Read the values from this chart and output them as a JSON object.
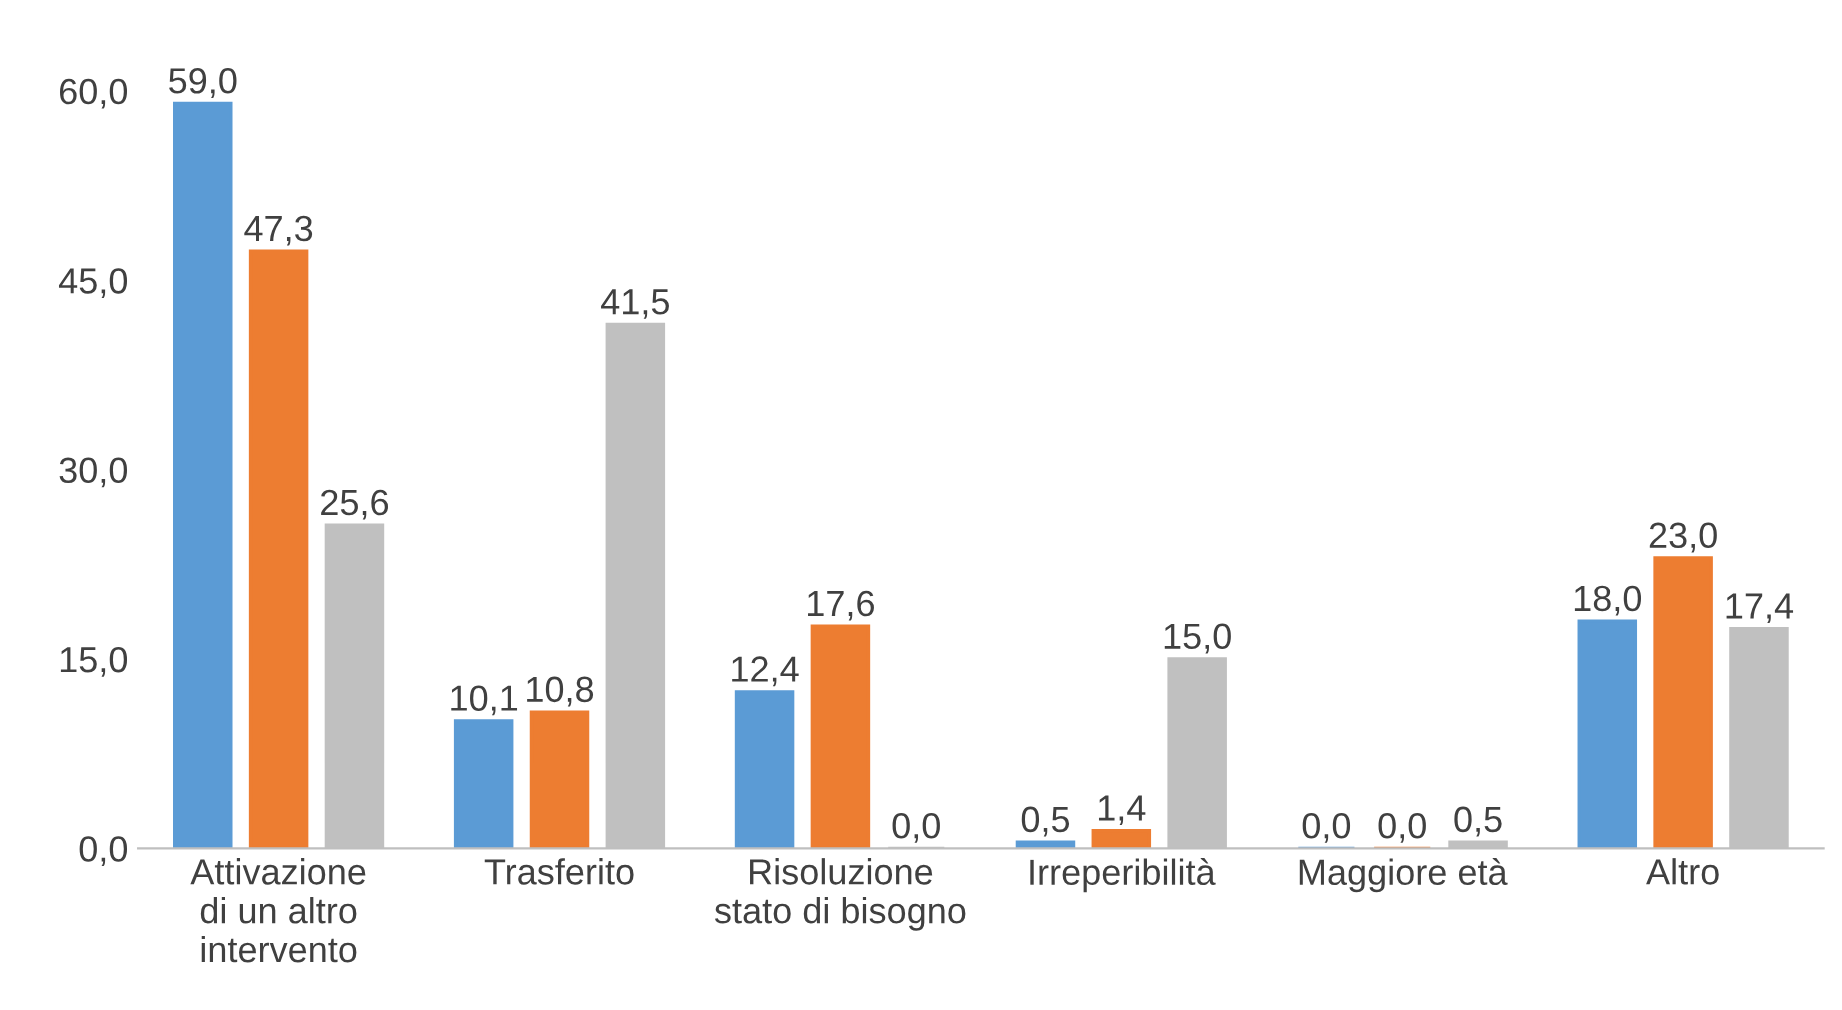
{
  "chart_data": {
    "type": "bar",
    "categories": [
      "Attivazione\ndi un altro\nintervento",
      "Trasferito",
      "Risoluzione\nstato di bisogno",
      "Irreperibilità",
      "Maggiore età",
      "Altro"
    ],
    "series": [
      {
        "color": "#5b9bd5",
        "values": [
          59.0,
          10.1,
          12.4,
          0.5,
          0.0,
          18.0
        ],
        "value_labels": [
          "59,0",
          "10,1",
          "12,4",
          "0,5",
          "0,0",
          "18,0"
        ]
      },
      {
        "color": "#ed7d31",
        "values": [
          47.3,
          10.8,
          17.6,
          1.4,
          0.0,
          23.0
        ],
        "value_labels": [
          "47,3",
          "10,8",
          "17,6",
          "1,4",
          "0,0",
          "23,0"
        ]
      },
      {
        "color": "#c0c0c0",
        "values": [
          25.6,
          41.5,
          0.0,
          15.0,
          0.5,
          17.4
        ],
        "value_labels": [
          "25,6",
          "41,5",
          "0,0",
          "15,0",
          "0,5",
          "17,4"
        ]
      }
    ],
    "ylim": [
      0,
      60
    ],
    "yticks": [
      {
        "value": 0,
        "label": "0,0"
      },
      {
        "value": 15,
        "label": "15,0"
      },
      {
        "value": 30,
        "label": "30,0"
      },
      {
        "value": 45,
        "label": "45,0"
      },
      {
        "value": 60,
        "label": "60,0"
      }
    ],
    "grid": false,
    "legend": false
  }
}
